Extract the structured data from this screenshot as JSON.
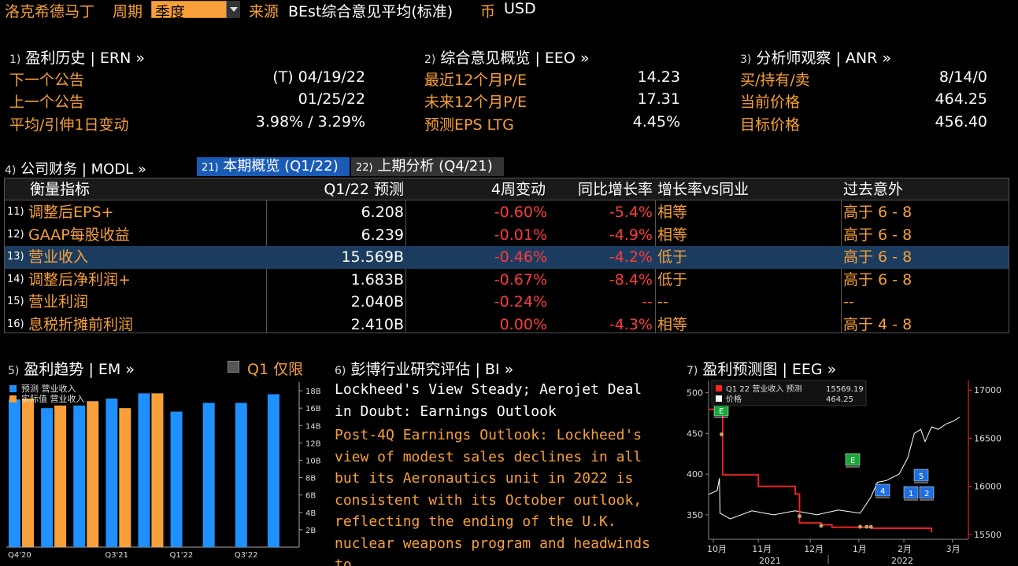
{
  "header": {
    "company": "洛克希德马丁",
    "period_label": "周期",
    "period_value": "季度",
    "source_label": "来源",
    "source_value": "BEst综合意见平均(标准)",
    "currency_label": "币",
    "currency_value": "USD"
  },
  "ern": {
    "num": "1)",
    "title": "盈利历史 | ERN »",
    "rows": [
      {
        "label": "下一个公告",
        "value": "(T)  04/19/22"
      },
      {
        "label": "上一个公告",
        "value": "01/25/22"
      },
      {
        "label": "平均/引伸1日变动",
        "value": "3.98% / 3.29%"
      }
    ]
  },
  "eeo": {
    "num": "2)",
    "title": "综合意见概览 | EEO »",
    "rows": [
      {
        "label": "最近12个月P/E",
        "value": "14.23"
      },
      {
        "label": "未来12个月P/E",
        "value": "17.31"
      },
      {
        "label": "预测EPS LTG",
        "value": "4.45%"
      }
    ]
  },
  "anr": {
    "num": "3)",
    "title": "分析师观察 | ANR »",
    "rows": [
      {
        "label": "买/持有/卖",
        "value": "8/14/0"
      },
      {
        "label": "当前价格",
        "value": "464.25"
      },
      {
        "label": "目标价格",
        "value": "456.40"
      }
    ]
  },
  "modl": {
    "num": "4)",
    "title": "公司财务 | MODL »",
    "tab_active_num": "21)",
    "tab_active": "本期概览 (Q1/22)",
    "tab_inactive_num": "22)",
    "tab_inactive": "上期分析 (Q4/21)",
    "columns": [
      "衡量指标",
      "Q1/22 预测",
      "4周变动",
      "同比增长率",
      "增长率vs同业",
      "过去意外"
    ],
    "rows": [
      {
        "num": "11)",
        "metric": "调整后EPS+",
        "est": "6.208",
        "chg4w": "-0.60%",
        "yoy": "-5.4%",
        "vspeer": "相等",
        "surprise": "高于 6 - 8"
      },
      {
        "num": "12)",
        "metric": "GAAP每股收益",
        "est": "6.239",
        "chg4w": "-0.01%",
        "yoy": "-4.9%",
        "vspeer": "相等",
        "surprise": "高于 6 - 8"
      },
      {
        "num": "13)",
        "metric": "营业收入",
        "est": "15.569B",
        "chg4w": "-0.46%",
        "yoy": "-4.2%",
        "vspeer": "低于",
        "surprise": "高于 6 - 8"
      },
      {
        "num": "14)",
        "metric": "调整后净利润+",
        "est": "1.683B",
        "chg4w": "-0.67%",
        "yoy": "-8.4%",
        "vspeer": "低于",
        "surprise": "高于 6 - 8"
      },
      {
        "num": "15)",
        "metric": "营业利润",
        "est": "2.040B",
        "chg4w": "-0.24%",
        "yoy": "--",
        "vspeer": "--",
        "surprise": "--"
      },
      {
        "num": "16)",
        "metric": "息税折摊前利润",
        "est": "2.410B",
        "chg4w": "0.00%",
        "yoy": "-4.3%",
        "vspeer": "相等",
        "surprise": "高于 4 - 8"
      }
    ]
  },
  "em": {
    "num": "5)",
    "title": "盈利趋势 | EM »",
    "q1_only": "Q1 仅限",
    "legend_forecast": "预测 营业收入",
    "legend_actual": "实际值 营业收入"
  },
  "bi": {
    "num": "6)",
    "title": "彭博行业研究评估 | BI »",
    "headline": "Lockheed's View Steady; Aerojet Deal in Doubt: Earnings Outlook",
    "body": "Post-4Q Earnings Outlook: Lockheed's view of modest sales declines in all but its Aeronautics unit in 2022 is consistent with its October outlook, reflecting the ending of the U.K. nuclear weapons program and headwinds to"
  },
  "eeg": {
    "num": "7)",
    "title": "盈利预测图 | EEG »",
    "legend_est_label": "Q1 22 营业收入 预测",
    "legend_est_value": "15569.19",
    "legend_price_label": "价格",
    "legend_price_value": "464.25"
  },
  "colors": {
    "orange": "#f7a03a",
    "blue": "#1e90ff",
    "red": "#ff3b3b",
    "selected_row": "#1b3c5f",
    "tab_active": "#1a5bb5"
  },
  "chart_data": [
    {
      "type": "bar",
      "title": "盈利趋势",
      "categories": [
        "Q4'20",
        "Q1'21",
        "Q2'21",
        "Q3'21",
        "Q4'21",
        "Q1'22",
        "Q2'22",
        "Q3'22",
        "Q4'22"
      ],
      "x_tick_labels": [
        "Q4'20",
        "Q3'21",
        "Q1'22",
        "Q3'22"
      ],
      "series": [
        {
          "name": "预测 营业收入",
          "color": "#1e90ff",
          "values": [
            17.0,
            16.0,
            16.3,
            17.1,
            17.7,
            15.6,
            16.6,
            16.6,
            17.6
          ]
        },
        {
          "name": "实际值 营业收入",
          "color": "#f7a03a",
          "values": [
            17.1,
            16.3,
            16.8,
            16.0,
            17.7,
            null,
            null,
            null,
            null
          ]
        }
      ],
      "y_ticks": [
        "2B",
        "4B",
        "6B",
        "8B",
        "10B",
        "12B",
        "14B",
        "16B",
        "18B"
      ],
      "ylim": [
        0,
        19
      ]
    },
    {
      "type": "line",
      "title": "盈利预测图",
      "x_tick_labels": [
        "10月",
        "11月",
        "12月",
        "1月",
        "2月",
        "3月"
      ],
      "x_group_labels": [
        "2021",
        "2022"
      ],
      "left_axis_ticks": [
        350,
        400,
        450,
        500
      ],
      "right_axis_ticks": [
        15500,
        16000,
        16500,
        17000
      ],
      "left_ylim": [
        320,
        515
      ],
      "right_ylim": [
        15450,
        17100
      ],
      "series": [
        {
          "name": "价格",
          "axis": "left",
          "color": "#ffffff",
          "points": [
            [
              0,
              375
            ],
            [
              4,
              380
            ],
            [
              5,
              395
            ],
            [
              5.3,
              352
            ],
            [
              10,
              345
            ],
            [
              20,
              355
            ],
            [
              30,
              350
            ],
            [
              40,
              355
            ],
            [
              50,
              350
            ],
            [
              60,
              356
            ],
            [
              70,
              352
            ],
            [
              75,
              372
            ],
            [
              78,
              390
            ],
            [
              82,
              392
            ],
            [
              88,
              400
            ],
            [
              92,
              420
            ],
            [
              95,
              450
            ],
            [
              98,
              455
            ],
            [
              100,
              440
            ],
            [
              103,
              458
            ],
            [
              106,
              455
            ],
            [
              110,
              462
            ],
            [
              113,
              465
            ],
            [
              116,
              470
            ]
          ]
        },
        {
          "name": "Q1 22 营业收入 预测",
          "axis": "right",
          "color": "#ff2222",
          "points": [
            [
              0,
              16800
            ],
            [
              5,
              16800
            ],
            [
              6.5,
              16120
            ],
            [
              20,
              16120
            ],
            [
              23,
              16000
            ],
            [
              38,
              16000
            ],
            [
              40,
              15920
            ],
            [
              42,
              15620
            ],
            [
              52,
              15600
            ],
            [
              57,
              15575
            ],
            [
              70,
              15575
            ],
            [
              75,
              15565
            ],
            [
              98,
              15565
            ],
            [
              103,
              15520
            ]
          ]
        }
      ],
      "event_markers": [
        "E",
        "E",
        "4",
        "5",
        "1",
        "2"
      ]
    }
  ]
}
